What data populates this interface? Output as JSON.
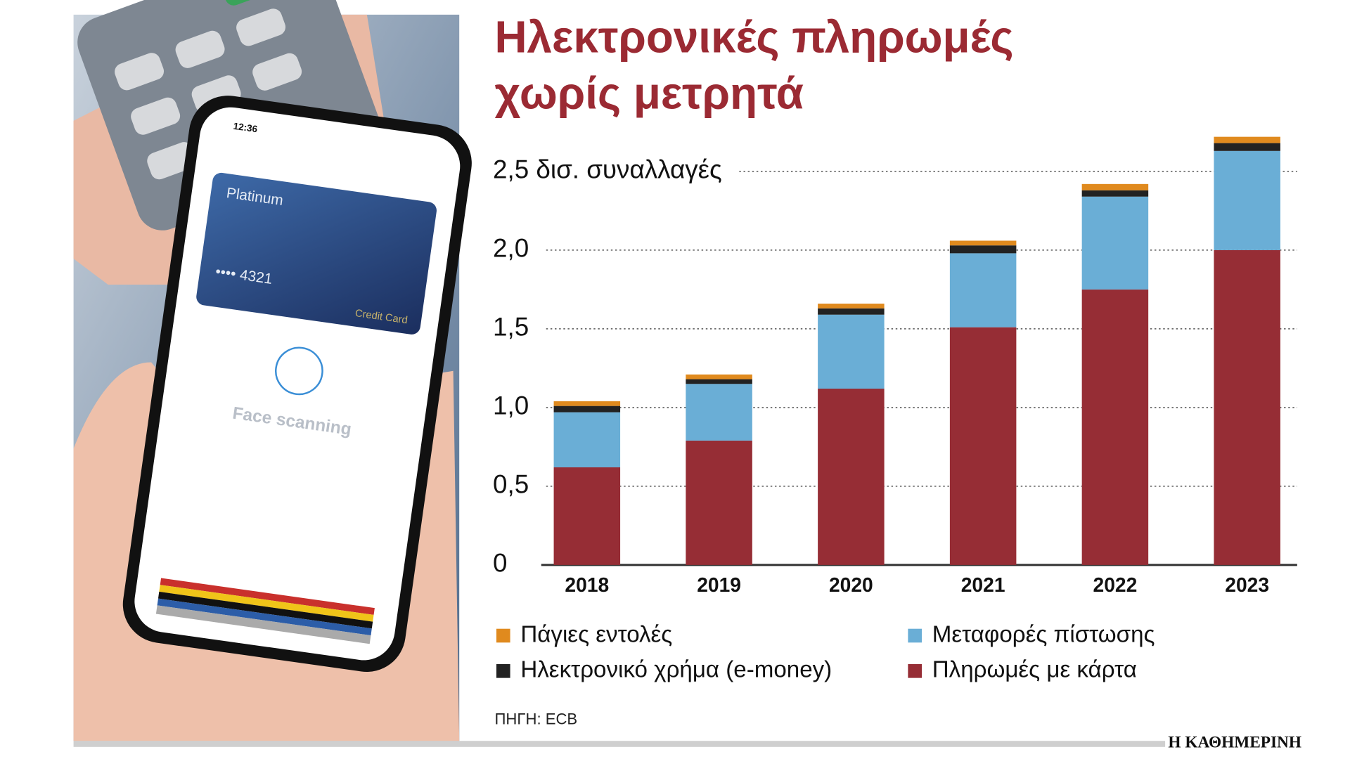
{
  "chart_data": {
    "type": "bar",
    "stacked": true,
    "title": "Ηλεκτρονικές πληρωμές χωρίς μετρητά",
    "categories": [
      "2018",
      "2019",
      "2020",
      "2021",
      "2022",
      "2023"
    ],
    "series": [
      {
        "name": "Πληρωμές με κάρτα",
        "color": "#962d35",
        "values": [
          0.62,
          0.79,
          1.12,
          1.51,
          1.75,
          2.0
        ]
      },
      {
        "name": "Μεταφορές πίστωσης",
        "color": "#6aaed6",
        "values": [
          0.35,
          0.36,
          0.47,
          0.47,
          0.59,
          0.63
        ]
      },
      {
        "name": "Ηλεκτρονικό χρήμα (e-money)",
        "color": "#222222",
        "values": [
          0.04,
          0.03,
          0.04,
          0.05,
          0.04,
          0.05
        ]
      },
      {
        "name": "Πάγιες εντολές",
        "color": "#e08a1e",
        "values": [
          0.03,
          0.03,
          0.03,
          0.03,
          0.04,
          0.04
        ]
      }
    ],
    "ylim": [
      0,
      2.75
    ],
    "yticks": [
      0,
      {
        "value": 0.5,
        "label": "0,5"
      },
      {
        "value": 1.0,
        "label": "1,0"
      },
      {
        "value": 1.5,
        "label": "1,5"
      },
      {
        "value": 2.0,
        "label": "2,0"
      },
      {
        "value": 2.5,
        "label": "2,5 δισ. συναλλαγές"
      }
    ],
    "grid": true,
    "source": "ΠΗΓΗ: ECB",
    "publisher": "Η ΚΑΘΗΜΕΡΙΝΗ"
  },
  "illustration": {
    "time": "12:36",
    "card_name": "Platinum",
    "card_number": "•••• 4321",
    "card_type": "Credit Card",
    "status": "Face scanning"
  }
}
